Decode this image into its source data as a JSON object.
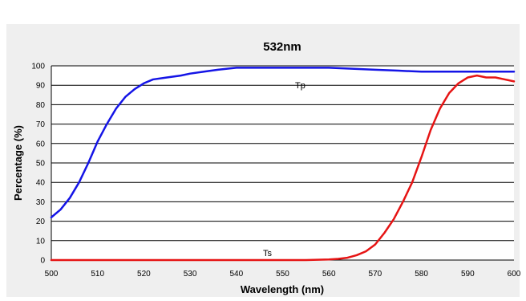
{
  "chart_data": {
    "type": "line",
    "title": "532nm",
    "xlabel": "Wavelength (nm)",
    "ylabel": "Percentage (%)",
    "xlim": [
      500,
      600
    ],
    "ylim": [
      0,
      100
    ],
    "x_ticks": [
      "500",
      "510",
      "520",
      "530",
      "540",
      "550",
      "560",
      "570",
      "580",
      "590",
      "600"
    ],
    "y_ticks": [
      "0",
      "10",
      "20",
      "30",
      "40",
      "50",
      "60",
      "70",
      "80",
      "90",
      "100"
    ],
    "grid": true,
    "series": [
      {
        "name": "Tp",
        "color": "#1414e6",
        "points": [
          [
            500,
            22
          ],
          [
            502,
            26
          ],
          [
            504,
            32
          ],
          [
            506,
            40
          ],
          [
            508,
            50
          ],
          [
            510,
            61
          ],
          [
            512,
            70
          ],
          [
            514,
            78
          ],
          [
            516,
            84
          ],
          [
            518,
            88
          ],
          [
            520,
            91
          ],
          [
            522,
            93
          ],
          [
            525,
            94
          ],
          [
            528,
            95
          ],
          [
            530,
            96
          ],
          [
            533,
            97
          ],
          [
            536,
            98
          ],
          [
            540,
            99
          ],
          [
            545,
            99
          ],
          [
            550,
            99
          ],
          [
            555,
            99
          ],
          [
            560,
            99
          ],
          [
            565,
            98.5
          ],
          [
            570,
            98
          ],
          [
            575,
            97.5
          ],
          [
            580,
            97
          ],
          [
            590,
            97
          ],
          [
            600,
            97
          ]
        ]
      },
      {
        "name": "Ts",
        "color": "#e61414",
        "points": [
          [
            500,
            0
          ],
          [
            520,
            0
          ],
          [
            540,
            0
          ],
          [
            555,
            0
          ],
          [
            560,
            0.3
          ],
          [
            562,
            0.6
          ],
          [
            564,
            1.2
          ],
          [
            566,
            2.5
          ],
          [
            568,
            4.5
          ],
          [
            570,
            8
          ],
          [
            572,
            14
          ],
          [
            574,
            21
          ],
          [
            576,
            30
          ],
          [
            578,
            40
          ],
          [
            580,
            53
          ],
          [
            582,
            67
          ],
          [
            584,
            78
          ],
          [
            586,
            86
          ],
          [
            588,
            91
          ],
          [
            590,
            94
          ],
          [
            592,
            95
          ],
          [
            594,
            94
          ],
          [
            596,
            94
          ],
          [
            598,
            93
          ],
          [
            600,
            92
          ]
        ]
      }
    ]
  }
}
